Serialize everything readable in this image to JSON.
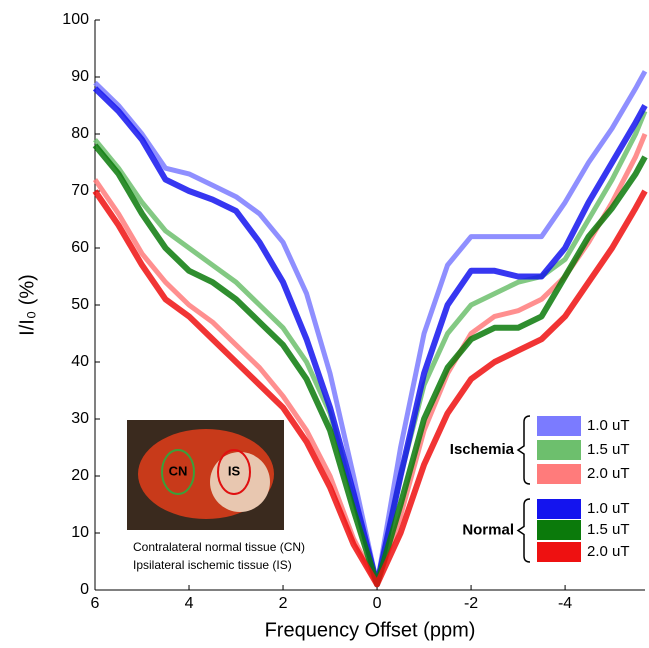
{
  "chart_data": {
    "type": "line",
    "xlabel": "Frequency Offset (ppm)",
    "ylabel": "I/I₀ (%)",
    "x": [
      6,
      5.5,
      5,
      4.5,
      4,
      3.5,
      3,
      2.5,
      2,
      1.5,
      1,
      0.5,
      0,
      -0.5,
      -1,
      -1.5,
      -2,
      -2.5,
      -3,
      -3.5,
      -4,
      -4.5,
      -5,
      -5.5,
      -5.7
    ],
    "xlim": [
      6,
      -5.7
    ],
    "xticks": [
      6,
      4,
      2,
      0,
      -2,
      -4
    ],
    "ylim": [
      0,
      100
    ],
    "yticks": [
      0,
      10,
      20,
      30,
      40,
      50,
      60,
      70,
      80,
      90,
      100
    ],
    "grid": false,
    "series": [
      {
        "name": "1.0 uT",
        "group": "Ischemia",
        "color": "#7b7bff",
        "values": [
          89,
          85,
          80,
          74,
          73,
          71,
          69,
          66,
          61,
          52,
          38,
          20,
          1,
          25,
          45,
          57,
          62,
          62,
          62,
          62,
          68,
          75,
          81,
          88,
          91
        ]
      },
      {
        "name": "1.5 uT",
        "group": "Ischemia",
        "color": "#6dbf6d",
        "values": [
          79,
          74,
          68,
          63,
          60,
          57,
          54,
          50,
          46,
          40,
          31,
          16,
          1,
          20,
          36,
          45,
          50,
          52,
          54,
          55,
          58,
          65,
          72,
          80,
          84
        ]
      },
      {
        "name": "2.0 uT",
        "group": "Ischemia",
        "color": "#ff7b7b",
        "values": [
          72,
          66,
          59,
          54,
          50,
          47,
          43,
          39,
          34,
          28,
          20,
          9,
          1,
          13,
          28,
          38,
          45,
          48,
          49,
          51,
          55,
          61,
          68,
          76,
          80
        ]
      },
      {
        "name": "1.0 uT",
        "group": "Normal",
        "color": "#1414ee",
        "values": [
          88,
          84,
          79,
          72,
          70,
          68.5,
          66.5,
          61,
          54,
          44,
          32,
          17,
          1,
          20,
          38,
          50,
          56,
          56,
          55,
          55,
          60,
          68,
          75,
          82,
          85
        ]
      },
      {
        "name": "1.5 uT",
        "group": "Normal",
        "color": "#0b7a0b",
        "values": [
          78,
          73,
          66,
          60,
          56,
          54,
          51,
          47,
          43,
          37,
          28,
          14,
          1,
          15,
          30,
          39,
          44,
          46,
          46,
          48,
          55,
          62,
          67,
          73,
          76
        ]
      },
      {
        "name": "2.0 uT",
        "group": "Normal",
        "color": "#ee1111",
        "values": [
          70,
          64,
          57,
          51,
          48,
          44,
          40,
          36,
          32,
          26,
          18,
          8,
          1,
          10,
          22,
          31,
          37,
          40,
          42,
          44,
          48,
          54,
          60,
          67,
          70
        ]
      }
    ]
  },
  "inset": {
    "regions": [
      "CN",
      "IS"
    ],
    "caption": [
      "Contralateral normal tissue (CN)",
      "Ipsilateral ischemic tissue (IS)"
    ]
  }
}
